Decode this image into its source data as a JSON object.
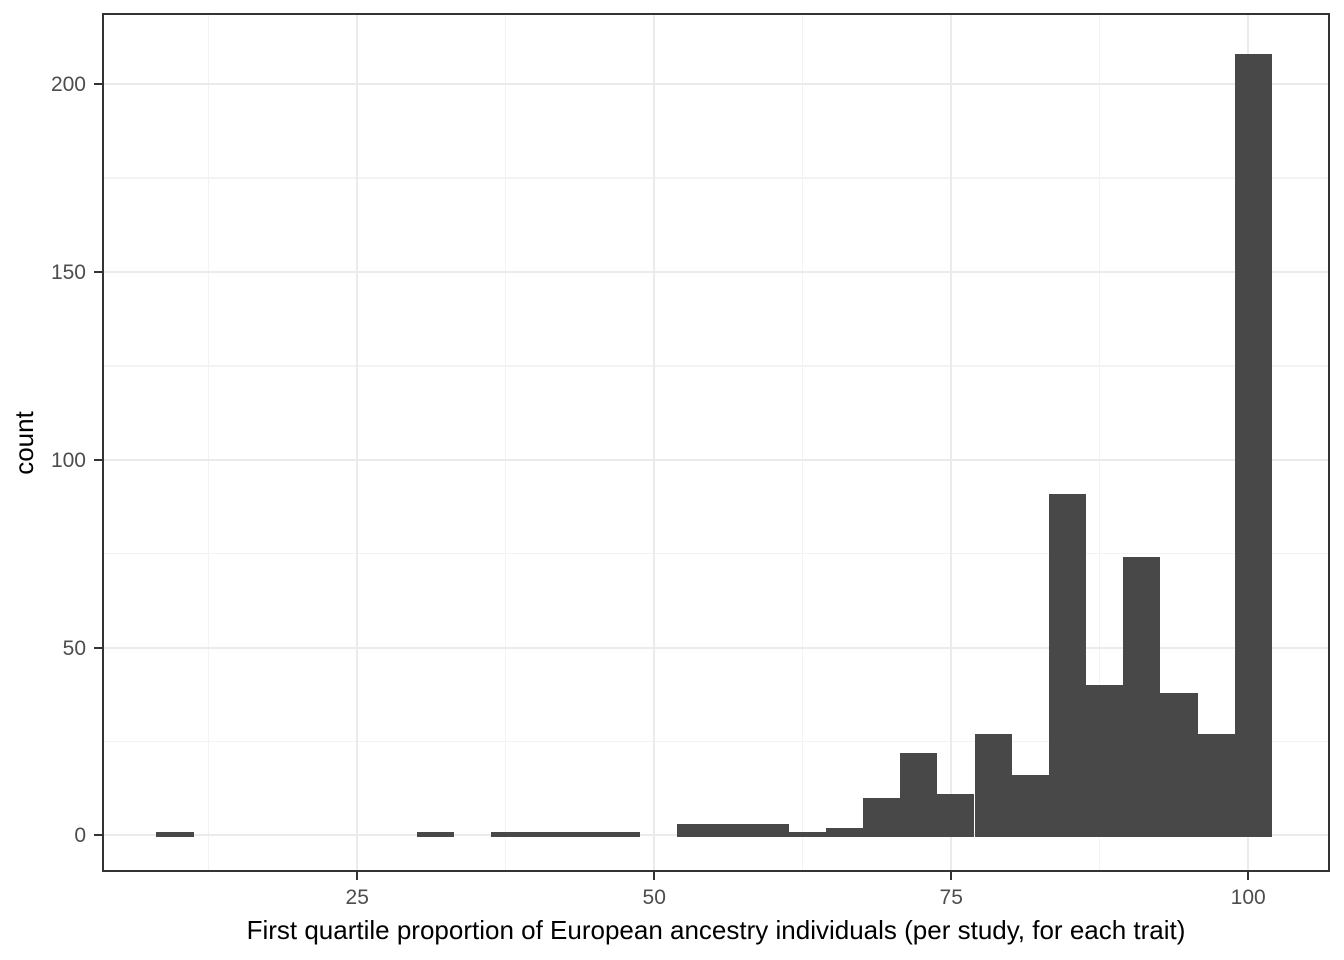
{
  "chart_data": {
    "type": "bar",
    "subtype": "histogram",
    "title": "",
    "xlabel": "First quartile proportion of European ancestry individuals (per study, for each trait)",
    "ylabel": "count",
    "bin_start": 8.1,
    "bin_width": 3.13,
    "counts": [
      1,
      0,
      0,
      0,
      0,
      0,
      0,
      1,
      0,
      1,
      1,
      1,
      1,
      0,
      3,
      3,
      3,
      1,
      2,
      10,
      22,
      11,
      27,
      16,
      91,
      40,
      74,
      38,
      27,
      208
    ],
    "x_ticks": [
      25,
      50,
      75,
      100
    ],
    "x_tick_labels": [
      "25",
      "50",
      "75",
      "100"
    ],
    "y_ticks": [
      0,
      50,
      100,
      150,
      200
    ],
    "y_tick_labels": [
      "0",
      "50",
      "100",
      "150",
      "200"
    ],
    "x_minor_ticks": [
      12.5,
      37.5,
      62.5,
      87.5
    ],
    "y_minor_ticks": [
      25,
      75,
      125,
      175
    ],
    "xlim": [
      3.6,
      106.8
    ],
    "ylim": [
      -9.5,
      218.7
    ],
    "grid": true,
    "legend": "none",
    "colors": {
      "bar_fill": "#484848",
      "panel_border": "#333333",
      "grid_major": "#ebebeb",
      "grid_minor": "#f3f3f3",
      "tick_label": "#4d4d4d",
      "axis_title": "#000000",
      "background": "#ffffff"
    }
  }
}
